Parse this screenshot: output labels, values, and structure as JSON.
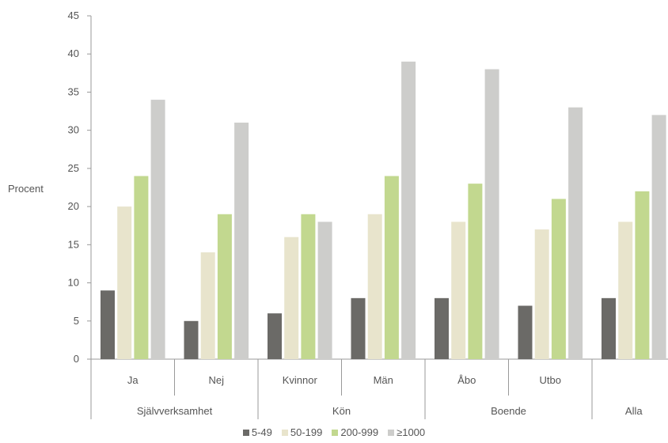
{
  "chart_data": {
    "type": "bar",
    "ylabel": "Procent",
    "ylim": [
      0,
      45
    ],
    "yticks": [
      0,
      5,
      10,
      15,
      20,
      25,
      30,
      35,
      40,
      45
    ],
    "grid": false,
    "legend_position": "bottom",
    "categories": [
      "Ja",
      "Nej",
      "Kvinnor",
      "Män",
      "Åbo",
      "Utbo",
      ""
    ],
    "groups": [
      {
        "label": "Självverksamhet",
        "categories": [
          "Ja",
          "Nej"
        ]
      },
      {
        "label": "Kön",
        "categories": [
          "Kvinnor",
          "Män"
        ]
      },
      {
        "label": "Boende",
        "categories": [
          "Åbo",
          "Utbo"
        ]
      },
      {
        "label": "Alla",
        "categories": [
          ""
        ]
      }
    ],
    "series": [
      {
        "name": "5-49",
        "color": "#6b6a67",
        "values": [
          9,
          5,
          6,
          8,
          8,
          7,
          8
        ]
      },
      {
        "name": "50-199",
        "color": "#e8e4cc",
        "values": [
          20,
          14,
          16,
          19,
          18,
          17,
          18
        ]
      },
      {
        "name": "200-999",
        "color": "#c2d88f",
        "values": [
          24,
          19,
          19,
          24,
          23,
          21,
          22
        ]
      },
      {
        "name": "≥1000",
        "color": "#cdcdcb",
        "values": [
          34,
          31,
          18,
          39,
          38,
          33,
          32
        ]
      }
    ]
  }
}
